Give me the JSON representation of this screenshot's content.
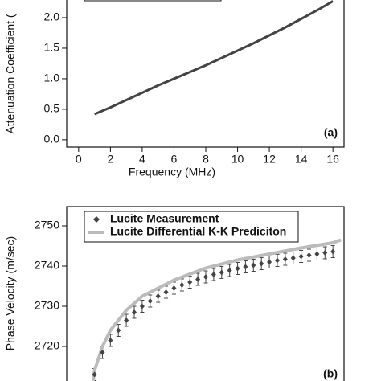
{
  "chart_data": [
    {
      "type": "line",
      "x_label": "Frequency (MHz)",
      "y_label": "Attenuation Coefficient (",
      "annotation": "(a)",
      "xlim": [
        -0.75,
        16.7
      ],
      "ylim": [
        -0.12,
        2.5
      ],
      "xticks": [
        0,
        2,
        4,
        6,
        8,
        10,
        12,
        14,
        16
      ],
      "yticks": [
        {
          "value": 0,
          "label": "0.0"
        },
        0.5,
        {
          "value": 1,
          "label": "1.0"
        },
        1.5,
        {
          "value": 2,
          "label": "2.0"
        }
      ],
      "series": [
        {
          "color": "#444444",
          "x": [
            1,
            2,
            3,
            4,
            5,
            6,
            7,
            8,
            9,
            10,
            11,
            12,
            13,
            14,
            15,
            16
          ],
          "values": [
            0.42,
            0.53,
            0.65,
            0.77,
            0.89,
            1.0,
            1.11,
            1.22,
            1.34,
            1.46,
            1.58,
            1.71,
            1.84,
            1.98,
            2.12,
            2.27
          ]
        }
      ]
    },
    {
      "type": "errorbar",
      "y_label": "Phase Velocity (m/sec)",
      "annotation": "(b)",
      "xlim": [
        -0.75,
        16.7
      ],
      "ylim": [
        2710,
        2754.8
      ],
      "yticks": [
        2720,
        2730,
        2740,
        2750
      ],
      "series": [
        {
          "name": "Lucite Measurement",
          "color": "#444444",
          "error": 1.5,
          "x": [
            1,
            1.5,
            2,
            2.5,
            3,
            3.5,
            4,
            4.5,
            5,
            5.5,
            6,
            6.5,
            7,
            7.5,
            8,
            8.5,
            9,
            9.5,
            10,
            10.5,
            11,
            11.5,
            12,
            12.5,
            13,
            13.5,
            14,
            14.5,
            15,
            15.5,
            16
          ],
          "values": [
            2713,
            2718.5,
            2721.5,
            2724,
            2726.5,
            2728.5,
            2730,
            2731.3,
            2732.5,
            2733.5,
            2734.5,
            2735.3,
            2736,
            2736.7,
            2737.3,
            2737.9,
            2738.4,
            2738.9,
            2739.4,
            2739.8,
            2740.2,
            2740.6,
            2741,
            2741.4,
            2741.7,
            2742,
            2742.4,
            2742.7,
            2743,
            2743.3,
            2743.6
          ]
        },
        {
          "name": "Lucite Differential K-K Prediciton",
          "color": "#bbbbbb",
          "x": [
            0.9,
            1,
            1.5,
            2,
            3,
            4,
            6,
            8,
            10,
            12,
            14,
            16,
            16.5
          ],
          "values": [
            2711,
            2714,
            2720,
            2724,
            2729,
            2732.5,
            2736.5,
            2739.5,
            2741.5,
            2743,
            2744.5,
            2745.8,
            2746.5
          ]
        }
      ]
    }
  ]
}
